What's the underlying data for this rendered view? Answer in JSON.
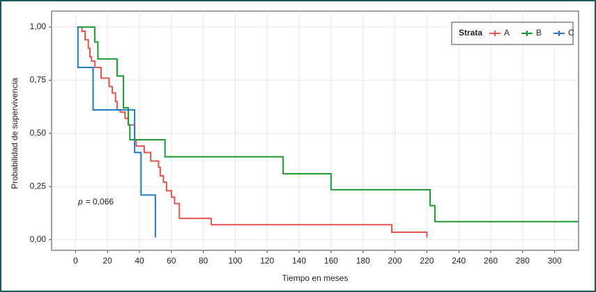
{
  "chart_data": {
    "type": "step",
    "x_label": "Tiempo en meses",
    "y_label": "Probabilidad de supervivencia",
    "legend_title": "Strata",
    "legend_position": "top-right",
    "grid": true,
    "annotation": {
      "symbol": "p",
      "text": "= 0,066"
    },
    "xlim": [
      -15,
      315
    ],
    "ylim": [
      -0.05,
      1.075
    ],
    "xticks": [
      0,
      20,
      40,
      60,
      80,
      100,
      120,
      140,
      160,
      180,
      200,
      220,
      240,
      260,
      280,
      300
    ],
    "yticks": [
      {
        "value": 0,
        "label": "0,00"
      },
      {
        "value": 0.25,
        "label": "0,25"
      },
      {
        "value": 0.5,
        "label": "0,50"
      },
      {
        "value": 0.75,
        "label": "0,75"
      },
      {
        "value": 1,
        "label": "1,00"
      }
    ],
    "series": [
      {
        "name": "A",
        "color": "#e5554b",
        "x": [
          2,
          4,
          6,
          8,
          9,
          10,
          12,
          16,
          21,
          23,
          25,
          26,
          28,
          31,
          33,
          37,
          38,
          43,
          47,
          52,
          53,
          55,
          57,
          60,
          62,
          65,
          85,
          198,
          220
        ],
        "values": [
          1.0,
          0.98,
          0.94,
          0.9,
          0.86,
          0.84,
          0.81,
          0.76,
          0.72,
          0.69,
          0.65,
          0.61,
          0.6,
          0.57,
          0.54,
          0.47,
          0.44,
          0.41,
          0.37,
          0.34,
          0.3,
          0.27,
          0.23,
          0.2,
          0.17,
          0.1,
          0.07,
          0.035,
          0.01
        ]
      },
      {
        "name": "B",
        "color": "#1a9a2e",
        "x": [
          1,
          12,
          14,
          26,
          30,
          33,
          34,
          56,
          130,
          160,
          222,
          225,
          315
        ],
        "values": [
          1.0,
          0.93,
          0.85,
          0.77,
          0.62,
          0.54,
          0.47,
          0.39,
          0.31,
          0.235,
          0.16,
          0.085,
          0.085
        ]
      },
      {
        "name": "C",
        "color": "#1f78c8",
        "x": [
          1,
          1.5,
          11,
          37,
          41,
          50
        ],
        "values": [
          1.0,
          0.81,
          0.61,
          0.41,
          0.21,
          0.01
        ]
      }
    ]
  }
}
